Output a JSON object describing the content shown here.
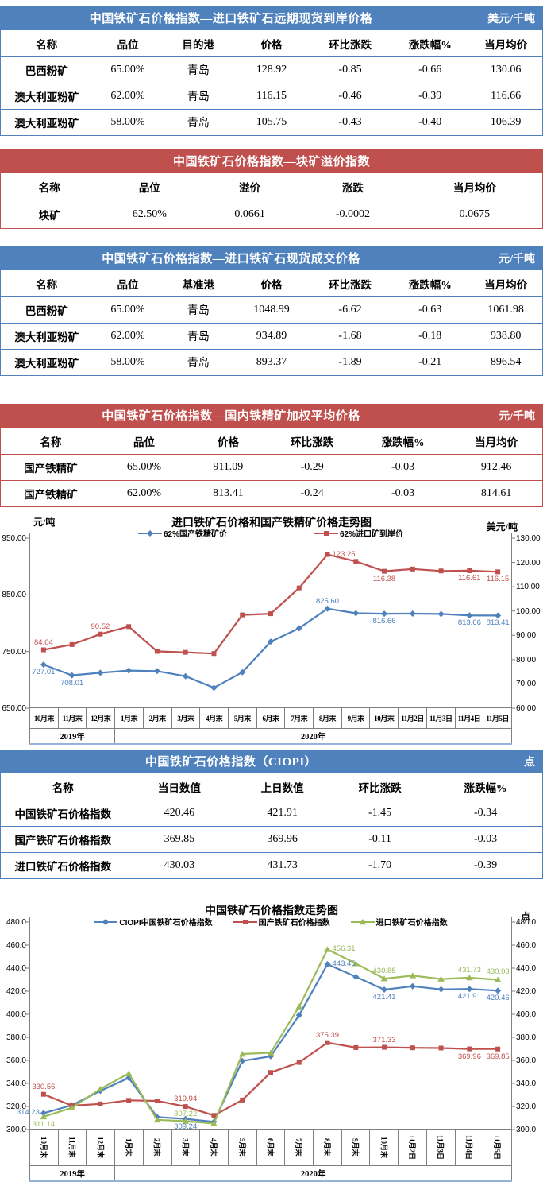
{
  "colors": {
    "header_blue": "#4F81BD",
    "header_red": "#C0504D",
    "series_blue": "#4F81BD",
    "series_red": "#C0504D",
    "series_green": "#9BBB59"
  },
  "tables": [
    {
      "theme": "blue",
      "title": "中国铁矿石价格指数—进口铁矿石远期现货到岸价格",
      "unit": "美元/千吨",
      "columns": [
        "名称",
        "品位",
        "目的港",
        "价格",
        "环比涨跌",
        "涨跌幅%",
        "当月均价"
      ],
      "rows": [
        [
          "巴西粉矿",
          "65.00%",
          "青岛",
          "128.92",
          "-0.85",
          "-0.66",
          "130.06"
        ],
        [
          "澳大利亚粉矿",
          "62.00%",
          "青岛",
          "116.15",
          "-0.46",
          "-0.39",
          "116.66"
        ],
        [
          "澳大利亚粉矿",
          "58.00%",
          "青岛",
          "105.75",
          "-0.43",
          "-0.40",
          "106.39"
        ]
      ]
    },
    {
      "theme": "red",
      "title": "中国铁矿石价格指数—块矿溢价指数",
      "unit": "",
      "columns": [
        "名称",
        "品位",
        "溢价",
        "涨跌",
        "当月均价"
      ],
      "rows": [
        [
          "块矿",
          "62.50%",
          "0.0661",
          "-0.0002",
          "0.0675"
        ]
      ]
    },
    {
      "theme": "blue",
      "title": "中国铁矿石价格指数—进口铁矿石现货成交价格",
      "unit": "元/千吨",
      "columns": [
        "名称",
        "品位",
        "基准港",
        "价格",
        "环比涨跌",
        "涨跌幅%",
        "当月均价"
      ],
      "rows": [
        [
          "巴西粉矿",
          "65.00%",
          "青岛",
          "1048.99",
          "-6.62",
          "-0.63",
          "1061.98"
        ],
        [
          "澳大利亚粉矿",
          "62.00%",
          "青岛",
          "934.89",
          "-1.68",
          "-0.18",
          "938.80"
        ],
        [
          "澳大利亚粉矿",
          "58.00%",
          "青岛",
          "893.37",
          "-1.89",
          "-0.21",
          "896.54"
        ]
      ]
    },
    {
      "theme": "red",
      "title": "中国铁矿石价格指数—国内铁精矿加权平均价格",
      "unit": "元/千吨",
      "columns": [
        "名称",
        "品位",
        "价格",
        "环比涨跌",
        "涨跌幅%",
        "当月均价"
      ],
      "rows": [
        [
          "国产铁精矿",
          "65.00%",
          "911.09",
          "-0.29",
          "-0.03",
          "912.46"
        ],
        [
          "国产铁精矿",
          "62.00%",
          "813.41",
          "-0.24",
          "-0.03",
          "814.61"
        ]
      ]
    },
    {
      "theme": "blue",
      "title": "中国铁矿石价格指数（CIOPI）",
      "unit": "点",
      "columns": [
        "名称",
        "当日数值",
        "上日数值",
        "环比涨跌",
        "涨跌幅%"
      ],
      "rows": [
        [
          "中国铁矿石价格指数",
          "420.46",
          "421.91",
          "-1.45",
          "-0.34"
        ],
        [
          "国产铁矿石价格指数",
          "369.85",
          "369.96",
          "-0.11",
          "-0.03"
        ],
        [
          "进口铁矿石价格指数",
          "430.03",
          "431.73",
          "-1.70",
          "-0.39"
        ]
      ]
    }
  ],
  "chart_data": [
    {
      "type": "line",
      "title": "进口铁矿石价格和国产铁精矿价格走势图",
      "categories": [
        "10月末",
        "11月末",
        "12月末",
        "1月末",
        "2月末",
        "3月末",
        "4月末",
        "5月末",
        "6月末",
        "7月末",
        "8月末",
        "9月末",
        "10月末",
        "11月2日",
        "11月3日",
        "11月4日",
        "11月5日"
      ],
      "year_groups": [
        {
          "label": "2019年",
          "span": 3
        },
        {
          "label": "2020年",
          "span": 14
        }
      ],
      "left_axis": {
        "unit": "元/吨",
        "min": 650,
        "max": 950,
        "ticks": [
          "950.00",
          "850.00",
          "750.00",
          "650.00"
        ]
      },
      "right_axis": {
        "unit": "美元/吨",
        "min": 60,
        "max": 130,
        "ticks": [
          "130.00",
          "120.00",
          "110.00",
          "100.00",
          "90.00",
          "80.00",
          "70.00",
          "60.00"
        ]
      },
      "grid": false,
      "legend_position": "top",
      "series": [
        {
          "name": "62%国产铁精矿价",
          "color": "#4F81BD",
          "marker": "diamond",
          "axis": "left",
          "values": [
            727.01,
            708.01,
            712.5,
            716.5,
            715.5,
            706.5,
            686,
            713.5,
            767.5,
            791,
            825.6,
            817.5,
            816.66,
            816.8,
            816.2,
            813.66,
            813.41
          ],
          "labels": [
            {
              "i": 0,
              "t": "727.01",
              "p": "b"
            },
            {
              "i": 1,
              "t": "708.01",
              "p": "b"
            },
            {
              "i": 10,
              "t": "825.60",
              "p": "a"
            },
            {
              "i": 12,
              "t": "816.66",
              "p": "b"
            },
            {
              "i": 15,
              "t": "813.66",
              "p": "b"
            },
            {
              "i": 16,
              "t": "813.41",
              "p": "b"
            }
          ]
        },
        {
          "name": "62%进口矿到岸价",
          "color": "#C0504D",
          "marker": "square",
          "axis": "right",
          "values": [
            84.04,
            86.2,
            90.52,
            93.6,
            83.4,
            83.0,
            82.5,
            98.4,
            98.9,
            109.5,
            123.25,
            120.4,
            116.38,
            117.3,
            116.5,
            116.61,
            116.15
          ],
          "labels": [
            {
              "i": 0,
              "t": "84.04",
              "p": "a"
            },
            {
              "i": 2,
              "t": "90.52",
              "p": "a"
            },
            {
              "i": 10,
              "t": "123.25",
              "p": "r"
            },
            {
              "i": 12,
              "t": "116.38",
              "p": "b"
            },
            {
              "i": 15,
              "t": "116.61",
              "p": "b"
            },
            {
              "i": 16,
              "t": "116.15",
              "p": "b"
            }
          ]
        }
      ]
    },
    {
      "type": "line",
      "title": "中国铁矿石价格指数走势图",
      "categories": [
        "10月末",
        "11月末",
        "12月末",
        "1月末",
        "2月末",
        "3月末",
        "4月末",
        "5月末",
        "6月末",
        "7月末",
        "8月末",
        "9月末",
        "10月末",
        "11月2日",
        "11月3日",
        "11月4日",
        "11月5日"
      ],
      "year_groups": [
        {
          "label": "2019年",
          "span": 3
        },
        {
          "label": "2020年",
          "span": 14
        }
      ],
      "left_axis": {
        "unit": "",
        "min": 300,
        "max": 480,
        "ticks": [
          "480.0",
          "460.0",
          "440.0",
          "420.0",
          "400.0",
          "380.0",
          "360.0",
          "340.0",
          "320.0",
          "300.0"
        ]
      },
      "right_axis": {
        "unit": "点",
        "min": 300,
        "max": 480,
        "ticks": [
          "480.0",
          "460.0",
          "440.0",
          "420.0",
          "400.0",
          "380.0",
          "360.0",
          "340.0",
          "320.0",
          "300.0"
        ]
      },
      "grid": false,
      "legend_position": "top",
      "series": [
        {
          "name": "CIOPI中国铁矿石价格指数",
          "color": "#4F81BD",
          "marker": "diamond",
          "axis": "left",
          "values": [
            314.23,
            321,
            333.5,
            344.8,
            310.8,
            309.24,
            306.6,
            359.5,
            363.5,
            399.2,
            443.45,
            432.5,
            421.41,
            424.3,
            421.6,
            421.91,
            420.46
          ],
          "labels": [
            {
              "i": 0,
              "t": "314.23",
              "p": "l"
            },
            {
              "i": 5,
              "t": "309.24",
              "p": "b"
            },
            {
              "i": 10,
              "t": "443.45",
              "p": "r"
            },
            {
              "i": 12,
              "t": "421.41",
              "p": "b"
            },
            {
              "i": 15,
              "t": "421.91",
              "p": "b"
            },
            {
              "i": 16,
              "t": "420.46",
              "p": "b"
            }
          ]
        },
        {
          "name": "国产铁矿石价格指数",
          "color": "#C0504D",
          "marker": "square",
          "axis": "left",
          "values": [
            330.56,
            320.7,
            322.2,
            325.3,
            324.8,
            319.94,
            312.2,
            325.6,
            349.5,
            358.2,
            375.39,
            371.1,
            371.33,
            370.9,
            370.7,
            369.96,
            369.85
          ],
          "labels": [
            {
              "i": 0,
              "t": "330.56",
              "p": "a"
            },
            {
              "i": 5,
              "t": "319.94",
              "p": "a"
            },
            {
              "i": 10,
              "t": "375.39",
              "p": "a"
            },
            {
              "i": 12,
              "t": "371.33",
              "p": "a"
            },
            {
              "i": 15,
              "t": "369.96",
              "p": "b"
            },
            {
              "i": 16,
              "t": "369.85",
              "p": "b"
            }
          ]
        },
        {
          "name": "进口铁矿石价格指数",
          "color": "#9BBB59",
          "marker": "triangle",
          "axis": "left",
          "values": [
            311.14,
            318.8,
            335.2,
            348.6,
            308.4,
            307.22,
            305.2,
            365.5,
            366.6,
            406.6,
            456.31,
            444,
            430.88,
            433.6,
            430.6,
            431.73,
            430.03
          ],
          "labels": [
            {
              "i": 0,
              "t": "311.14",
              "p": "b"
            },
            {
              "i": 5,
              "t": "307.22",
              "p": "a"
            },
            {
              "i": 10,
              "t": "456.31",
              "p": "r"
            },
            {
              "i": 12,
              "t": "430.88",
              "p": "a"
            },
            {
              "i": 15,
              "t": "431.73",
              "p": "a"
            },
            {
              "i": 16,
              "t": "430.03",
              "p": "a"
            }
          ]
        }
      ]
    }
  ]
}
